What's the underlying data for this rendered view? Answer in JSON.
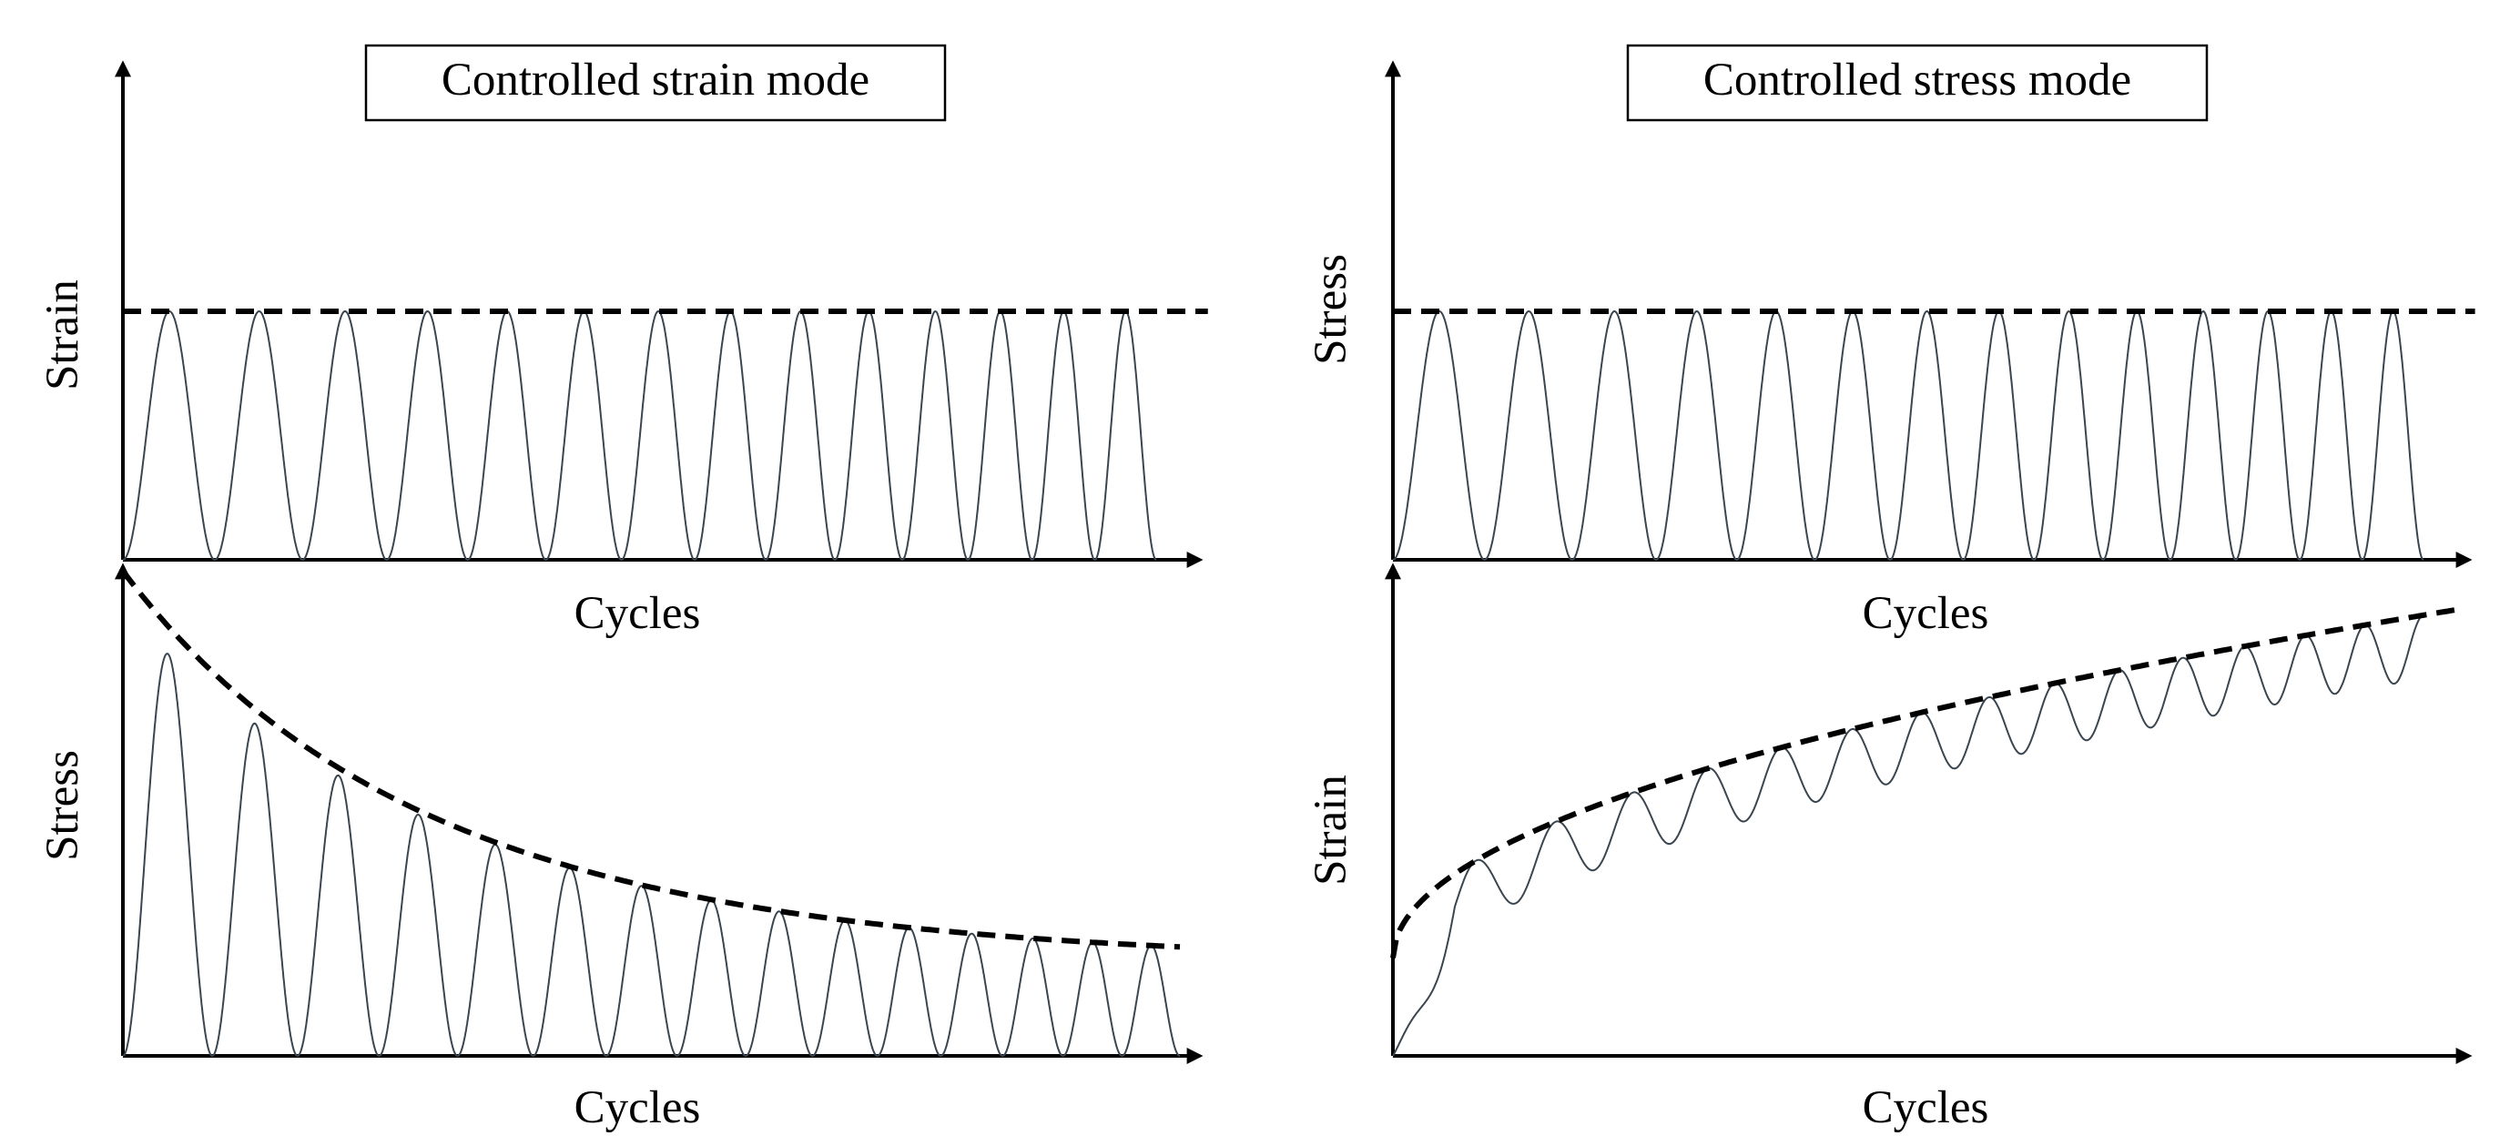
{
  "panels": [
    {
      "mode_title": "Controlled strain mode",
      "top_chart": {
        "y_label": "Strain",
        "x_label": "Cycles",
        "cycles": 14,
        "envelope": "constant",
        "envelope_level": 1.0,
        "baseline": 0.0
      },
      "bottom_chart": {
        "y_label": "Stress",
        "x_label": "Cycles",
        "cycles": 15,
        "envelope": "decreasing",
        "envelope_start": 0.91,
        "envelope_end": 0.19,
        "baseline": 0.0
      }
    },
    {
      "mode_title": "Controlled stress mode",
      "top_chart": {
        "y_label": "Stress",
        "x_label": "Cycles",
        "cycles": 14,
        "envelope": "constant",
        "envelope_level": 1.0,
        "baseline": 0.0
      },
      "bottom_chart": {
        "y_label": "Strain",
        "x_label": "Cycles",
        "cycles": 15,
        "envelope": "increasing",
        "envelope_start": 0.2,
        "envelope_end": 0.9,
        "cycle_amplitude": 0.13
      }
    }
  ],
  "colors": {
    "axis": "#000000",
    "signal": "#3a4550",
    "envelope": "#000000"
  }
}
